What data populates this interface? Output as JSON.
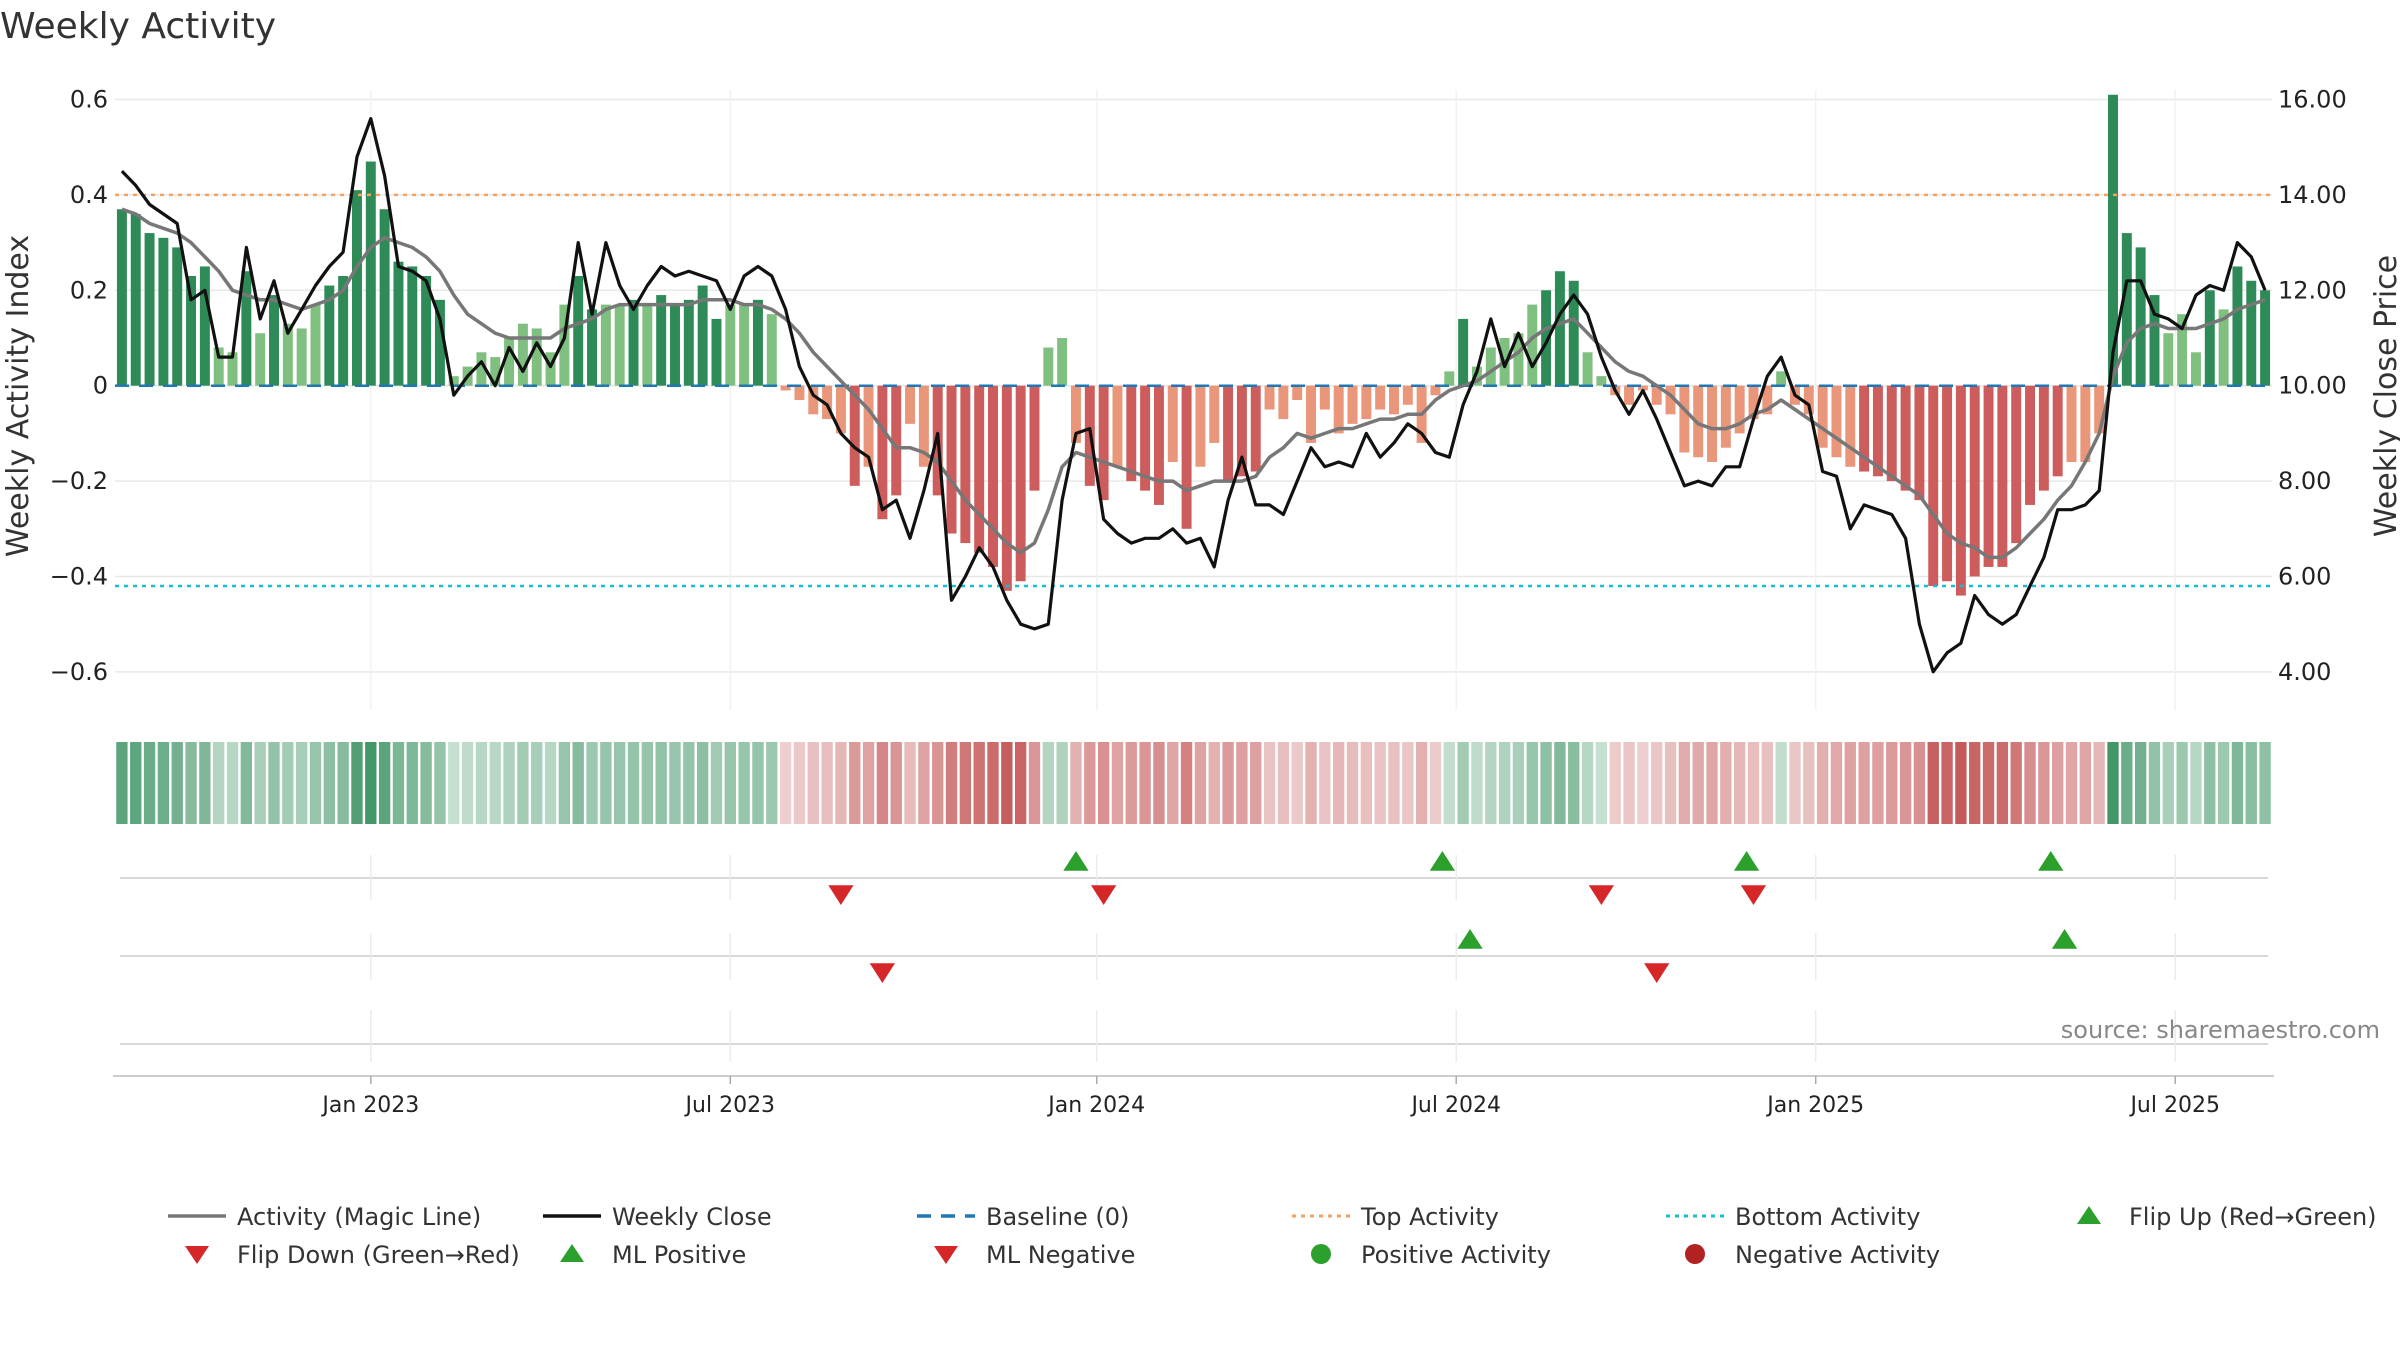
{
  "title": "Weekly Activity",
  "source": "source: sharemaestro.com",
  "chart_data": {
    "type": "bar",
    "title": "Weekly Activity",
    "ylabel_left": "Weekly Activity Index",
    "ylabel_right": "Weekly Close Price",
    "ylim_left": [
      -0.68,
      0.62
    ],
    "ylim_right": [
      3.2,
      16.2
    ],
    "yticks_left": [
      {
        "v": 0.6,
        "label": "0.6"
      },
      {
        "v": 0.4,
        "label": "0.4"
      },
      {
        "v": 0.2,
        "label": "0.2"
      },
      {
        "v": 0,
        "label": "0"
      },
      {
        "v": -0.2,
        "label": "−0.2"
      },
      {
        "v": -0.4,
        "label": "−0.4"
      },
      {
        "v": -0.6,
        "label": "−0.6"
      }
    ],
    "yticks_right": [
      {
        "v": 16,
        "label": "16.00"
      },
      {
        "v": 14,
        "label": "14.00"
      },
      {
        "v": 12,
        "label": "12.00"
      },
      {
        "v": 10,
        "label": "10.00"
      },
      {
        "v": 8,
        "label": "8.00"
      },
      {
        "v": 6,
        "label": "6.00"
      },
      {
        "v": 4,
        "label": "4.00"
      }
    ],
    "xticks": [
      {
        "week": 18,
        "label": "Jan 2023"
      },
      {
        "week": 44,
        "label": "Jul 2023"
      },
      {
        "week": 70.5,
        "label": "Jan 2024"
      },
      {
        "week": 96.5,
        "label": "Jul 2024"
      },
      {
        "week": 122.5,
        "label": "Jan 2025"
      },
      {
        "week": 148.5,
        "label": "Jul 2025"
      }
    ],
    "top_activity": 0.4,
    "bottom_activity": -0.42,
    "baseline": 0,
    "activity": [
      0.37,
      0.36,
      0.32,
      0.31,
      0.29,
      0.23,
      0.25,
      0.08,
      0.07,
      0.24,
      0.11,
      0.19,
      0.13,
      0.12,
      0.17,
      0.21,
      0.23,
      0.41,
      0.47,
      0.37,
      0.26,
      0.25,
      0.23,
      0.18,
      0.02,
      0.04,
      0.07,
      0.06,
      0.1,
      0.13,
      0.12,
      0.07,
      0.17,
      0.23,
      0.16,
      0.17,
      0.17,
      0.18,
      0.17,
      0.19,
      0.17,
      0.18,
      0.21,
      0.14,
      0.17,
      0.17,
      0.18,
      0.15,
      -0.01,
      -0.03,
      -0.06,
      -0.07,
      -0.1,
      -0.21,
      -0.17,
      -0.28,
      -0.23,
      -0.08,
      -0.17,
      -0.23,
      -0.31,
      -0.33,
      -0.35,
      -0.38,
      -0.43,
      -0.41,
      -0.22,
      0.08,
      0.1,
      -0.12,
      -0.21,
      -0.24,
      -0.17,
      -0.2,
      -0.22,
      -0.25,
      -0.16,
      -0.3,
      -0.17,
      -0.12,
      -0.2,
      -0.19,
      -0.18,
      -0.05,
      -0.07,
      -0.03,
      -0.12,
      -0.05,
      -0.1,
      -0.08,
      -0.07,
      -0.05,
      -0.06,
      -0.04,
      -0.12,
      -0.02,
      0.03,
      0.14,
      0.04,
      0.08,
      0.1,
      0.11,
      0.17,
      0.2,
      0.24,
      0.22,
      0.07,
      0.02,
      -0.02,
      -0.04,
      -0.01,
      -0.04,
      -0.06,
      -0.14,
      -0.15,
      -0.16,
      -0.13,
      -0.1,
      -0.07,
      -0.06,
      0.03,
      -0.04,
      -0.06,
      -0.13,
      -0.15,
      -0.17,
      -0.18,
      -0.19,
      -0.2,
      -0.22,
      -0.24,
      -0.42,
      -0.41,
      -0.44,
      -0.4,
      -0.38,
      -0.38,
      -0.33,
      -0.25,
      -0.22,
      -0.19,
      -0.16,
      -0.16,
      -0.1,
      0.61,
      0.32,
      0.29,
      0.19,
      0.11,
      0.15,
      0.07,
      0.2,
      0.16,
      0.25,
      0.22,
      0.2
    ],
    "weekly_close": [
      14.5,
      14.2,
      13.8,
      13.6,
      13.4,
      11.8,
      12.0,
      10.6,
      10.6,
      12.9,
      11.4,
      12.2,
      11.1,
      11.6,
      12.1,
      12.5,
      12.8,
      14.8,
      15.6,
      14.4,
      12.5,
      12.4,
      12.2,
      11.4,
      9.8,
      10.2,
      10.5,
      10.0,
      10.8,
      10.3,
      10.9,
      10.4,
      11.0,
      13.0,
      11.5,
      13.0,
      12.1,
      11.6,
      12.1,
      12.5,
      12.3,
      12.4,
      12.3,
      12.2,
      11.6,
      12.3,
      12.5,
      12.3,
      11.6,
      10.4,
      9.8,
      9.6,
      9.0,
      8.7,
      8.5,
      7.4,
      7.6,
      6.8,
      7.8,
      9.0,
      5.5,
      6.0,
      6.6,
      6.2,
      5.5,
      5.0,
      4.9,
      5.0,
      7.6,
      9.0,
      9.1,
      7.2,
      6.9,
      6.7,
      6.8,
      6.8,
      7.0,
      6.7,
      6.8,
      6.2,
      7.6,
      8.5,
      7.5,
      7.5,
      7.3,
      8.0,
      8.7,
      8.3,
      8.4,
      8.3,
      9.0,
      8.5,
      8.8,
      9.2,
      9.0,
      8.6,
      8.5,
      9.6,
      10.3,
      11.4,
      10.4,
      11.1,
      10.4,
      10.9,
      11.5,
      11.9,
      11.5,
      10.6,
      9.9,
      9.4,
      9.9,
      9.3,
      8.6,
      7.9,
      8.0,
      7.9,
      8.3,
      8.3,
      9.3,
      10.2,
      10.6,
      9.8,
      9.6,
      8.2,
      8.1,
      7.0,
      7.5,
      7.4,
      7.3,
      6.8,
      5.0,
      4.0,
      4.4,
      4.6,
      5.6,
      5.2,
      5.0,
      5.2,
      5.8,
      6.4,
      7.4,
      7.4,
      7.5,
      7.8,
      10.7,
      12.2,
      12.2,
      11.5,
      11.4,
      11.2,
      11.9,
      12.1,
      12.0,
      13.0,
      12.7,
      12.0
    ],
    "magic_line": [
      0.37,
      0.36,
      0.34,
      0.33,
      0.32,
      0.3,
      0.27,
      0.24,
      0.2,
      0.19,
      0.18,
      0.18,
      0.17,
      0.16,
      0.17,
      0.18,
      0.2,
      0.25,
      0.29,
      0.31,
      0.3,
      0.29,
      0.27,
      0.24,
      0.19,
      0.15,
      0.13,
      0.11,
      0.1,
      0.1,
      0.1,
      0.1,
      0.12,
      0.13,
      0.14,
      0.16,
      0.17,
      0.17,
      0.17,
      0.17,
      0.17,
      0.17,
      0.18,
      0.18,
      0.18,
      0.17,
      0.17,
      0.16,
      0.14,
      0.11,
      0.07,
      0.04,
      0.01,
      -0.02,
      -0.05,
      -0.09,
      -0.13,
      -0.13,
      -0.14,
      -0.16,
      -0.2,
      -0.24,
      -0.27,
      -0.3,
      -0.33,
      -0.35,
      -0.33,
      -0.26,
      -0.17,
      -0.14,
      -0.15,
      -0.16,
      -0.17,
      -0.18,
      -0.19,
      -0.2,
      -0.2,
      -0.22,
      -0.21,
      -0.2,
      -0.2,
      -0.2,
      -0.19,
      -0.15,
      -0.13,
      -0.1,
      -0.11,
      -0.1,
      -0.09,
      -0.09,
      -0.08,
      -0.07,
      -0.07,
      -0.06,
      -0.06,
      -0.03,
      -0.01,
      0.0,
      0.01,
      0.03,
      0.05,
      0.07,
      0.1,
      0.12,
      0.13,
      0.14,
      0.11,
      0.08,
      0.05,
      0.03,
      0.02,
      0.0,
      -0.02,
      -0.05,
      -0.08,
      -0.09,
      -0.09,
      -0.08,
      -0.06,
      -0.05,
      -0.03,
      -0.05,
      -0.07,
      -0.09,
      -0.11,
      -0.13,
      -0.15,
      -0.17,
      -0.19,
      -0.21,
      -0.23,
      -0.27,
      -0.31,
      -0.33,
      -0.34,
      -0.36,
      -0.36,
      -0.34,
      -0.31,
      -0.28,
      -0.24,
      -0.21,
      -0.16,
      -0.1,
      0.02,
      0.09,
      0.12,
      0.13,
      0.12,
      0.12,
      0.12,
      0.13,
      0.14,
      0.16,
      0.17,
      0.18
    ],
    "flip_up_weeks": [
      69,
      95.5,
      117.5,
      139.5
    ],
    "flip_down_weeks": [
      52,
      71,
      107,
      118
    ],
    "ml_positive_weeks": [
      97.5,
      140.5
    ],
    "ml_negative_weeks": [
      55,
      111
    ],
    "legend": [
      {
        "name": "Activity (Magic Line)",
        "symbol": "line",
        "color": "#777777"
      },
      {
        "name": "Weekly Close",
        "symbol": "line",
        "color": "#111111"
      },
      {
        "name": "Baseline (0)",
        "symbol": "dash",
        "color": "#1f77b4"
      },
      {
        "name": "Top Activity",
        "symbol": "dot",
        "color": "#f4a261"
      },
      {
        "name": "Bottom Activity",
        "symbol": "dot",
        "color": "#17becf"
      },
      {
        "name": "Flip Up (Red→Green)",
        "symbol": "up",
        "color": "#2ca02c"
      },
      {
        "name": "Flip Down (Green→Red)",
        "symbol": "down",
        "color": "#d62728"
      },
      {
        "name": "ML Positive",
        "symbol": "up",
        "color": "#2ca02c"
      },
      {
        "name": "ML Negative",
        "symbol": "down",
        "color": "#d62728"
      },
      {
        "name": "Positive Activity",
        "symbol": "circle",
        "color": "#2ca02c"
      },
      {
        "name": "Negative Activity",
        "symbol": "circle",
        "color": "#b22222"
      }
    ],
    "colors": {
      "pos_dark": "#2e8b57",
      "pos_light": "#7fbf7f",
      "neg_dark": "#cd5c5c",
      "neg_light": "#e9967a",
      "grid": "#e8e8e8",
      "baseline": "#1f77b4",
      "top": "#f4a261",
      "bottom": "#17becf"
    }
  }
}
